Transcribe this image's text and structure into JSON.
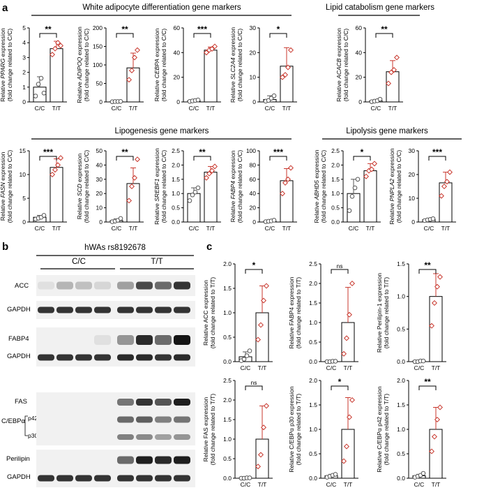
{
  "panels": {
    "a": "a",
    "b": "b",
    "c": "c"
  },
  "section_headers": {
    "white": "White adipocyte differentiation gene markers",
    "lipid_cat": "Lipid catabolism gene markers",
    "lipogenesis": "Lipogenesis gene markers",
    "lipolysis": "Lipolysis gene markers"
  },
  "blot": {
    "header": "hWAs rs8192678",
    "group_cc": "C/C",
    "group_tt": "T/T",
    "row_labels": [
      "ACC",
      "GAPDH",
      "FABP4",
      "GAPDH",
      "FAS",
      "C/EBPα",
      "p42",
      "p30",
      "Perilipin",
      "GAPDH"
    ]
  },
  "colors": {
    "cc": "#555555",
    "tt": "#c8372d"
  },
  "chart_data": [
    {
      "type": "bar",
      "panel": "a",
      "gene": "PPARG",
      "ylabel_pre": "Relative ",
      "ylabel_gene": "PPARG",
      "ylabel_post": " expression",
      "ylabel2": "(fold change related to C/C)",
      "categories": [
        "C/C",
        "T/T"
      ],
      "values": [
        1.0,
        3.6
      ],
      "errors": [
        0.7,
        0.5
      ],
      "points": [
        [
          0.4,
          1.2,
          1.6,
          0.6
        ],
        [
          3.2,
          3.6,
          4.0,
          3.8
        ]
      ],
      "ylim": [
        0,
        5
      ],
      "yticks": [
        "0",
        "1",
        "2",
        "3",
        "4",
        "5"
      ],
      "sig": "**"
    },
    {
      "type": "bar",
      "panel": "a",
      "gene": "ADIPOQ",
      "ylabel_pre": "Relative ",
      "ylabel_gene": "ADIPOQ",
      "ylabel_post": " expression",
      "ylabel2": "(fold change related to C/C)",
      "categories": [
        "C/C",
        "T/T"
      ],
      "values": [
        1,
        92
      ],
      "errors": [
        0.5,
        40
      ],
      "points": [
        [
          0.5,
          1,
          1.2,
          1.3
        ],
        [
          60,
          85,
          120,
          140
        ]
      ],
      "ylim": [
        0,
        200
      ],
      "yticks": [
        "0",
        "50",
        "100",
        "150",
        "200"
      ],
      "sig": "**"
    },
    {
      "type": "bar",
      "panel": "a",
      "gene": "CEBPA",
      "ylabel_pre": "Relative ",
      "ylabel_gene": "CEBPA",
      "ylabel_post": " expression",
      "ylabel2": "(fold change related to C/C)",
      "categories": [
        "C/C",
        "T/T"
      ],
      "values": [
        1,
        42
      ],
      "errors": [
        0.8,
        2.5
      ],
      "points": [
        [
          0.4,
          0.8,
          1.2,
          1.6
        ],
        [
          40,
          42,
          43,
          45
        ]
      ],
      "ylim": [
        0,
        60
      ],
      "yticks": [
        "0",
        "20",
        "40",
        "60"
      ],
      "sig": "***"
    },
    {
      "type": "bar",
      "panel": "a",
      "gene": "SLC2A4",
      "ylabel_pre": "Relative ",
      "ylabel_gene": "SLC2A4",
      "ylabel_post": " expression",
      "ylabel2": "(fold change related to C/C)",
      "categories": [
        "C/C",
        "T/T"
      ],
      "values": [
        1,
        14.5
      ],
      "errors": [
        1.5,
        7.5
      ],
      "points": [
        [
          0.3,
          0.6,
          1.5,
          2.5
        ],
        [
          10,
          11,
          14,
          21
        ]
      ],
      "ylim": [
        0,
        30
      ],
      "yticks": [
        "0",
        "10",
        "20",
        "30"
      ],
      "sig": "*"
    },
    {
      "type": "bar",
      "panel": "a",
      "gene": "ACACB",
      "ylabel_pre": "Relative ",
      "ylabel_gene": "ACACB",
      "ylabel_post": " expression",
      "ylabel2": "(fold change related to C/C)",
      "categories": [
        "C/C",
        "T/T"
      ],
      "values": [
        1,
        24.5
      ],
      "errors": [
        1,
        9
      ],
      "points": [
        [
          0.2,
          0.6,
          1.0,
          2.2
        ],
        [
          15,
          24,
          26,
          36
        ]
      ],
      "ylim": [
        0,
        60
      ],
      "yticks": [
        "0",
        "20",
        "40",
        "60"
      ],
      "sig": "**"
    },
    {
      "type": "bar",
      "panel": "a",
      "gene": "FASN",
      "ylabel_pre": "Relative ",
      "ylabel_gene": "FASN",
      "ylabel_post": " expression",
      "ylabel2": "(fold change related to C/C)",
      "categories": [
        "C/C",
        "T/T"
      ],
      "values": [
        1,
        11.5
      ],
      "errors": [
        0.4,
        1.8
      ],
      "points": [
        [
          0.6,
          0.8,
          1.0,
          1.4
        ],
        [
          10,
          11,
          12,
          13.5
        ]
      ],
      "ylim": [
        0,
        15
      ],
      "yticks": [
        "0",
        "5",
        "10",
        "15"
      ],
      "sig": "***"
    },
    {
      "type": "bar",
      "panel": "a",
      "gene": "SCD",
      "ylabel_pre": "Relative ",
      "ylabel_gene": "SCD",
      "ylabel_post": " expression",
      "ylabel2": "(fold change related to C/C)",
      "categories": [
        "C/C",
        "T/T"
      ],
      "values": [
        1,
        27
      ],
      "errors": [
        1.2,
        11
      ],
      "points": [
        [
          0.2,
          0.6,
          1.2,
          2.5
        ],
        [
          15,
          25,
          31,
          44
        ]
      ],
      "ylim": [
        0,
        50
      ],
      "yticks": [
        "0",
        "10",
        "20",
        "30",
        "40",
        "50"
      ],
      "sig": "**"
    },
    {
      "type": "bar",
      "panel": "a",
      "gene": "SREBF1",
      "ylabel_pre": "Relative ",
      "ylabel_gene": "SREBF1",
      "ylabel_post": " expression",
      "ylabel2": "(fold change related to C/C)",
      "categories": [
        "C/C",
        "T/T"
      ],
      "values": [
        1.0,
        1.75
      ],
      "errors": [
        0.2,
        0.2
      ],
      "points": [
        [
          0.75,
          0.95,
          1.05,
          1.2
        ],
        [
          1.55,
          1.7,
          1.8,
          1.95
        ]
      ],
      "ylim": [
        0,
        2.5
      ],
      "yticks": [
        "0.0",
        "0.5",
        "1.0",
        "1.5",
        "2.0",
        "2.5"
      ],
      "sig": "**"
    },
    {
      "type": "bar",
      "panel": "a",
      "gene": "FABP4",
      "ylabel_pre": "Relative ",
      "ylabel_gene": "FABP4",
      "ylabel_post": " expression",
      "ylabel2": "(fold change related to C/C)",
      "categories": [
        "C/C",
        "T/T"
      ],
      "values": [
        1,
        58
      ],
      "errors": [
        1,
        17
      ],
      "points": [
        [
          0.5,
          1,
          1.5,
          2.5
        ],
        [
          40,
          55,
          60,
          76
        ]
      ],
      "ylim": [
        0,
        100
      ],
      "yticks": [
        "0",
        "20",
        "40",
        "60",
        "80",
        "100"
      ],
      "sig": "***"
    },
    {
      "type": "bar",
      "panel": "a",
      "gene": "ABHD5",
      "ylabel_pre": "Relative ",
      "ylabel_gene": "ABHD5",
      "ylabel_post": " expression",
      "ylabel2": "(fold change related to C/C)",
      "categories": [
        "C/C",
        "T/T"
      ],
      "values": [
        1.0,
        1.8
      ],
      "errors": [
        0.5,
        0.25
      ],
      "points": [
        [
          0.4,
          0.9,
          1.2,
          1.5
        ],
        [
          1.6,
          1.8,
          1.85,
          2.05
        ]
      ],
      "ylim": [
        0,
        2.5
      ],
      "yticks": [
        "0.0",
        "0.5",
        "1.0",
        "1.5",
        "2.0",
        "2.5"
      ],
      "sig": "*"
    },
    {
      "type": "bar",
      "panel": "a",
      "gene": "PNPLA2",
      "ylabel_pre": "Relative ",
      "ylabel_gene": "PNPLA2",
      "ylabel_post": " expression",
      "ylabel2": "(fold change related to C/C)",
      "categories": [
        "C/C",
        "T/T"
      ],
      "values": [
        1,
        16.5
      ],
      "errors": [
        0.5,
        4.5
      ],
      "points": [
        [
          0.6,
          0.9,
          1.1,
          1.4
        ],
        [
          11,
          15,
          17,
          21
        ]
      ],
      "ylim": [
        0,
        30
      ],
      "yticks": [
        "0",
        "10",
        "20",
        "30"
      ],
      "sig": "***"
    },
    {
      "type": "bar",
      "panel": "c",
      "gene": "ACC",
      "ylabel_pre": "Relative ACC expression",
      "ylabel_gene": "",
      "ylabel_post": "",
      "ylabel2": "(fold change related to T/T)",
      "categories": [
        "C/C",
        "T/T"
      ],
      "values": [
        0.1,
        1.0
      ],
      "errors": [
        0.1,
        0.55
      ],
      "points": [
        [
          0.02,
          0.05,
          0.12,
          0.22
        ],
        [
          0.45,
          0.75,
          1.25,
          1.55
        ]
      ],
      "ylim": [
        0,
        2.0
      ],
      "yticks": [
        "0.0",
        "0.5",
        "1.0",
        "1.5",
        "2.0"
      ],
      "sig": "*"
    },
    {
      "type": "bar",
      "panel": "c",
      "gene": "FABP4",
      "ylabel_pre": "Relative FABP4 expression",
      "ylabel_gene": "",
      "ylabel_post": "",
      "ylabel2": "(fold change related to T/T)",
      "categories": [
        "C/C",
        "T/T"
      ],
      "values": [
        0.01,
        1.0
      ],
      "errors": [
        0.01,
        0.9
      ],
      "points": [
        [
          0,
          0,
          0.01,
          0.01
        ],
        [
          0.2,
          0.6,
          1.2,
          2.0
        ]
      ],
      "ylim": [
        0,
        2.5
      ],
      "yticks": [
        "0.0",
        "0.5",
        "1.0",
        "1.5",
        "2.0",
        "2.5"
      ],
      "sig": "ns"
    },
    {
      "type": "bar",
      "panel": "c",
      "gene": "Perilipin-1",
      "ylabel_pre": "Relative Perilipin-1 expression",
      "ylabel_gene": "",
      "ylabel_post": "",
      "ylabel2": "(fold change related to T/T)",
      "categories": [
        "C/C",
        "T/T"
      ],
      "values": [
        0.01,
        1.0
      ],
      "errors": [
        0.01,
        0.35
      ],
      "points": [
        [
          0,
          0,
          0.01,
          0.01
        ],
        [
          0.55,
          0.9,
          1.15,
          1.3
        ]
      ],
      "ylim": [
        0,
        1.5
      ],
      "yticks": [
        "0.0",
        "0.5",
        "1.0",
        "1.5"
      ],
      "sig": "**"
    },
    {
      "type": "bar",
      "panel": "c",
      "gene": "FAS",
      "ylabel_pre": "Relative FAS expression",
      "ylabel_gene": "",
      "ylabel_post": "",
      "ylabel2": "(fold change related to T/T)",
      "categories": [
        "C/C",
        "T/T"
      ],
      "values": [
        0.01,
        1.0
      ],
      "errors": [
        0.01,
        0.85
      ],
      "points": [
        [
          0,
          0,
          0.01,
          0.01
        ],
        [
          0.3,
          0.6,
          1.3,
          1.85
        ]
      ],
      "ylim": [
        0,
        2.5
      ],
      "yticks": [
        "0.0",
        "0.5",
        "1.0",
        "1.5",
        "2.0",
        "2.5"
      ],
      "sig": "ns"
    },
    {
      "type": "bar",
      "panel": "c",
      "gene": "C/EBPα p30",
      "ylabel_pre": "Relative C/EBPα p30 expression",
      "ylabel_gene": "",
      "ylabel_post": "",
      "ylabel2": "(fold change related to T/T)",
      "categories": [
        "C/C",
        "T/T"
      ],
      "values": [
        0.05,
        1.0
      ],
      "errors": [
        0.03,
        0.65
      ],
      "points": [
        [
          0.02,
          0.04,
          0.06,
          0.08
        ],
        [
          0.35,
          0.65,
          1.25,
          1.6
        ]
      ],
      "ylim": [
        0,
        2.0
      ],
      "yticks": [
        "0.0",
        "0.5",
        "1.0",
        "1.5",
        "2.0"
      ],
      "sig": "*"
    },
    {
      "type": "bar",
      "panel": "c",
      "gene": "C/EBPα p42",
      "ylabel_pre": "Relative C/EBPα p42 expression",
      "ylabel_gene": "",
      "ylabel_post": "",
      "ylabel2": "(fold change related to T/T)",
      "categories": [
        "C/C",
        "T/T"
      ],
      "values": [
        0.05,
        1.0
      ],
      "errors": [
        0.03,
        0.45
      ],
      "points": [
        [
          0.02,
          0.04,
          0.06,
          0.1
        ],
        [
          0.55,
          0.85,
          1.2,
          1.45
        ]
      ],
      "ylim": [
        0,
        2.0
      ],
      "yticks": [
        "0.0",
        "0.5",
        "1.0",
        "1.5",
        "2.0"
      ],
      "sig": "**"
    }
  ]
}
